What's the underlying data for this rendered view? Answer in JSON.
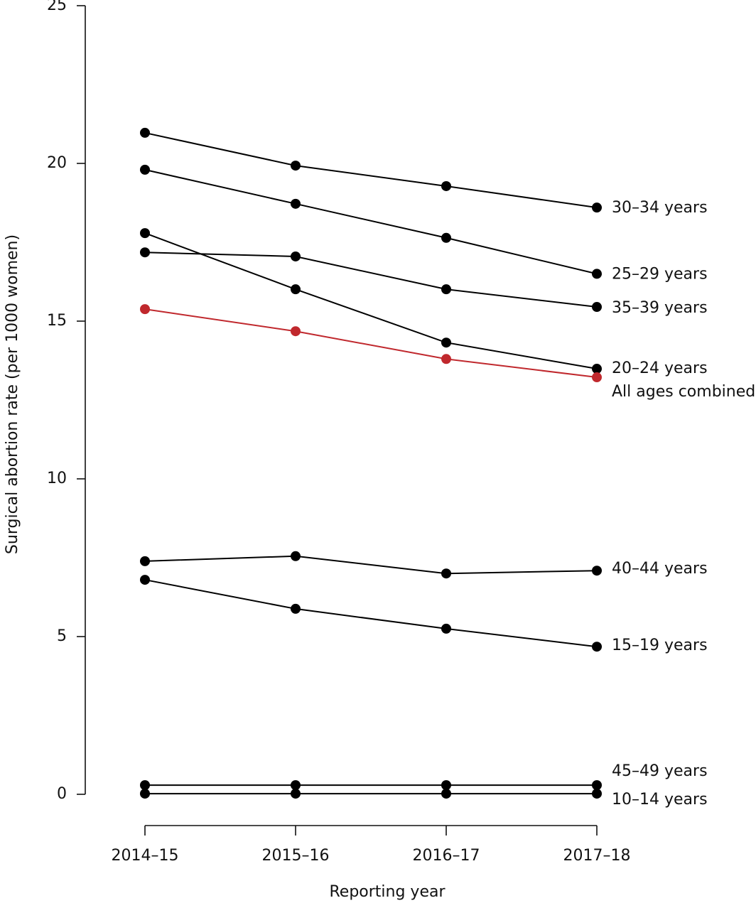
{
  "chart_data": {
    "type": "line",
    "x_label": "Reporting year",
    "y_label": "Surgical abortion rate (per 1000 women)",
    "categories": [
      "2014–15",
      "2015–16",
      "2016–17",
      "2017–18"
    ],
    "ylim": [
      0,
      25
    ],
    "yticks": [
      0,
      5,
      10,
      15,
      20,
      25
    ],
    "series": [
      {
        "name": "30–34 years",
        "color": "#000000",
        "values": [
          20.97,
          19.93,
          19.28,
          18.6
        ]
      },
      {
        "name": "25–29 years",
        "color": "#000000",
        "values": [
          19.8,
          18.72,
          17.64,
          16.5
        ]
      },
      {
        "name": "35–39 years",
        "color": "#000000",
        "values": [
          17.18,
          17.05,
          16.01,
          15.45
        ]
      },
      {
        "name": "20–24 years",
        "color": "#000000",
        "values": [
          17.79,
          16.01,
          14.32,
          13.49
        ]
      },
      {
        "name": "All ages combined",
        "color": "#c0282d",
        "values": [
          15.38,
          14.68,
          13.8,
          13.22
        ]
      },
      {
        "name": "40–44 years",
        "color": "#000000",
        "values": [
          7.39,
          7.55,
          7.0,
          7.09
        ]
      },
      {
        "name": "15–19 years",
        "color": "#000000",
        "values": [
          6.8,
          5.88,
          5.25,
          4.68
        ]
      },
      {
        "name": "45–49 years",
        "color": "#000000",
        "values": [
          0.29,
          0.29,
          0.29,
          0.29
        ]
      },
      {
        "name": "10–14 years",
        "color": "#000000",
        "values": [
          0.02,
          0.02,
          0.02,
          0.02
        ]
      }
    ]
  }
}
